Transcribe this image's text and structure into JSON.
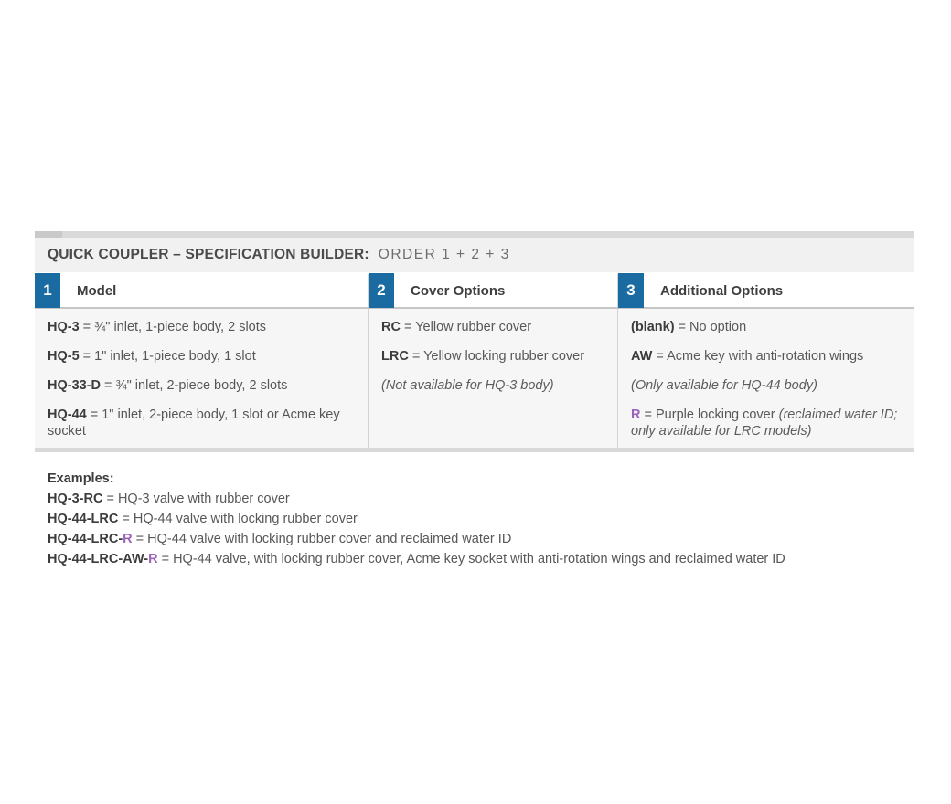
{
  "header": {
    "title": "QUICK COUPLER – SPECIFICATION BUILDER:",
    "order": "ORDER 1 + 2 + 3"
  },
  "columns": [
    {
      "number": "1",
      "label": "Model",
      "rows": [
        {
          "code": "HQ-3",
          "text": " = ¾\" inlet, 1-piece body, 2 slots"
        },
        {
          "code": "HQ-5",
          "text": " = 1\" inlet, 1-piece body, 1 slot"
        },
        {
          "code": "HQ-33-D",
          "text": " = ¾\" inlet, 2-piece body, 2 slots"
        },
        {
          "code": "HQ-44",
          "text": " = 1\" inlet, 2-piece body, 1 slot or Acme key socket"
        }
      ]
    },
    {
      "number": "2",
      "label": "Cover Options",
      "rows": [
        {
          "code": "RC",
          "text": " = Yellow rubber cover"
        },
        {
          "code": "LRC",
          "text": " = Yellow locking rubber cover"
        },
        {
          "note": "(Not available for HQ-3 body)"
        }
      ]
    },
    {
      "number": "3",
      "label": "Additional Options",
      "rows": [
        {
          "code": "(blank)",
          "text": " = No option"
        },
        {
          "code": "AW",
          "text": " = Acme key with anti-rotation wings"
        },
        {
          "note": "(Only available for HQ-44 body)"
        },
        {
          "code": "R",
          "text": " = Purple locking cover ",
          "note": "(reclaimed water ID; only available for LRC models)"
        }
      ]
    }
  ],
  "examples": {
    "heading": "Examples:",
    "items": [
      {
        "code": "HQ-3-RC",
        "text": " = HQ-3 valve with rubber cover"
      },
      {
        "code": "HQ-44-LRC",
        "text": " = HQ-44 valve with locking rubber cover"
      },
      {
        "code": "HQ-44-LRC-",
        "r": "R",
        "text": " = HQ-44 valve with locking rubber cover and reclaimed water ID"
      },
      {
        "code": "HQ-44-LRC-AW-",
        "r": "R",
        "text": " = HQ-44 valve, with locking rubber cover, Acme key socket with anti-rotation wings and reclaimed water ID"
      }
    ]
  },
  "colors": {
    "badge_blue": "#1b6ba3",
    "accent_purple": "#9c64b8"
  }
}
